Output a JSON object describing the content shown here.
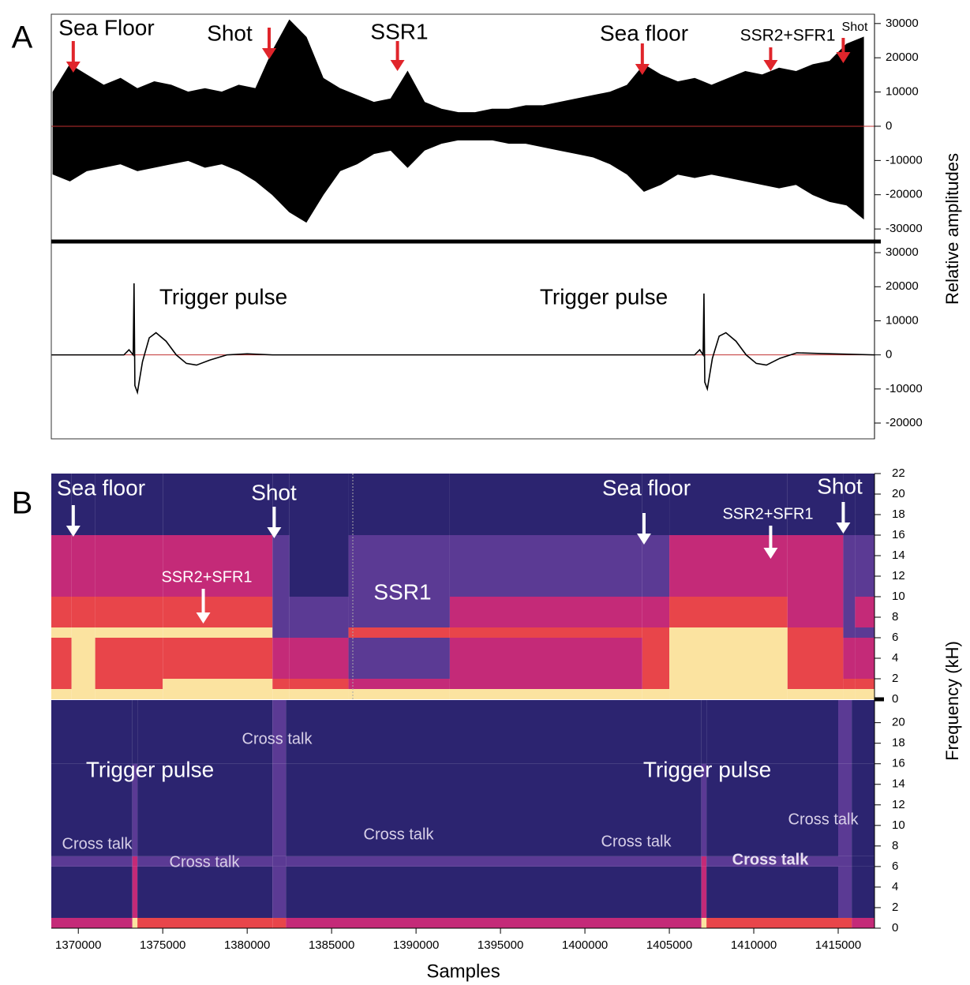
{
  "chart_data": [
    {
      "type": "area",
      "panel": "A",
      "ylabel": "Relative amplitudes",
      "xlim": [
        1368400,
        1417150
      ],
      "ylim": [
        -33200,
        31800
      ],
      "yticks": [
        30000,
        20000,
        10000,
        0,
        -10000,
        -20000,
        -30000
      ],
      "zero_line_color": "#c03030",
      "arrow_color": "#e0252b",
      "x": [
        1368500,
        1369500,
        1370500,
        1371500,
        1372500,
        1373500,
        1374500,
        1375500,
        1376500,
        1377500,
        1378500,
        1379500,
        1380500,
        1381500,
        1382500,
        1383500,
        1384500,
        1385500,
        1386500,
        1387500,
        1388500,
        1389500,
        1390500,
        1391500,
        1392500,
        1393500,
        1394500,
        1395500,
        1396500,
        1397500,
        1398500,
        1399500,
        1400500,
        1401500,
        1402500,
        1403500,
        1404500,
        1405500,
        1406500,
        1407500,
        1408500,
        1409500,
        1410500,
        1411500,
        1412500,
        1413500,
        1414500,
        1415500,
        1416500
      ],
      "series": [
        {
          "color": "#000000",
          "values": [
            10000,
            18000,
            15000,
            12000,
            14000,
            11000,
            13000,
            12000,
            10000,
            11000,
            10000,
            12000,
            11000,
            22000,
            31000,
            26000,
            14000,
            11000,
            9000,
            7000,
            8000,
            16000,
            7000,
            5000,
            4000,
            4000,
            5000,
            5000,
            6000,
            6000,
            7000,
            8000,
            9000,
            10000,
            12000,
            18000,
            15000,
            13000,
            14000,
            12000,
            14000,
            16000,
            15000,
            17000,
            16000,
            18000,
            19000,
            24000,
            26000
          ]
        },
        {
          "color": "#000000",
          "values": [
            -14000,
            -16000,
            -13000,
            -12000,
            -11000,
            -13000,
            -12000,
            -11000,
            -10000,
            -12000,
            -11000,
            -13000,
            -16000,
            -20000,
            -25000,
            -28000,
            -20000,
            -13000,
            -11000,
            -8000,
            -7000,
            -12000,
            -7000,
            -5000,
            -4000,
            -4000,
            -4000,
            -5000,
            -5000,
            -6000,
            -7000,
            -8000,
            -9000,
            -11000,
            -14000,
            -19000,
            -17000,
            -14000,
            -15000,
            -14000,
            -15000,
            -16000,
            -17000,
            -18000,
            -17000,
            -20000,
            -22000,
            -23000,
            -27000
          ]
        }
      ],
      "annotations": [
        {
          "text": "Sea Floor",
          "x": 1369700
        },
        {
          "text": "Shot",
          "x": 1381300
        },
        {
          "text": "SSR1",
          "x": 1388900
        },
        {
          "text": "Sea floor",
          "x": 1403400
        },
        {
          "text": "SSR2+SFR1",
          "x": 1411000
        },
        {
          "text": "Shot",
          "x": 1415300
        }
      ]
    },
    {
      "type": "line",
      "xlim": [
        1368400,
        1417150
      ],
      "ylim": [
        -24400,
        32800
      ],
      "yticks": [
        30000,
        20000,
        10000,
        0,
        -10000,
        -20000
      ],
      "zero_line_color": "#c03030",
      "color": "#000000",
      "x": [
        1368400,
        1372700,
        1373000,
        1373250,
        1373300,
        1373350,
        1373500,
        1373800,
        1374200,
        1374600,
        1375200,
        1375800,
        1376400,
        1377000,
        1377800,
        1378800,
        1380000,
        1381500,
        1406500,
        1406800,
        1407000,
        1407050,
        1407100,
        1407250,
        1407550,
        1407950,
        1408350,
        1408950,
        1409550,
        1410150,
        1410750,
        1411550,
        1412550,
        1414000,
        1417150
      ],
      "values": [
        0,
        0,
        1500,
        0,
        21000,
        -9000,
        -11000,
        -2000,
        5000,
        6500,
        4000,
        0,
        -2500,
        -3000,
        -1500,
        0,
        300,
        0,
        0,
        1500,
        0,
        18000,
        -8000,
        -10000,
        -1000,
        5500,
        6500,
        4000,
        0,
        -2500,
        -3000,
        -1000,
        600,
        400,
        0
      ],
      "annotations": [
        {
          "text": "Trigger pulse"
        },
        {
          "text": "Trigger pulse"
        }
      ]
    },
    {
      "type": "heatmap",
      "panel": "B",
      "ylabel": "Frequency (kH)",
      "xlim": [
        1368400,
        1417150
      ],
      "ylim": [
        0,
        22
      ],
      "yticks": [
        0,
        2,
        4,
        6,
        8,
        10,
        12,
        14,
        16,
        18,
        20,
        22
      ],
      "palette": [
        "#2c2470",
        "#5b3a94",
        "#c42a78",
        "#e8454a",
        "#fbe3a0"
      ],
      "arrow_color": "#ffffff",
      "x_edges": [
        1368400,
        1369600,
        1371000,
        1375000,
        1381500,
        1382500,
        1386000,
        1392000,
        1403400,
        1405000,
        1412000,
        1415300,
        1416000,
        1417150
      ],
      "y_edges": [
        0,
        1,
        2,
        6,
        7,
        10,
        16,
        22
      ],
      "levels": [
        [
          4,
          4,
          4,
          4,
          4,
          4,
          4,
          4,
          4,
          4,
          4,
          4,
          4
        ],
        [
          3,
          4,
          3,
          4,
          3,
          3,
          2,
          2,
          3,
          4,
          3,
          3,
          3
        ],
        [
          3,
          4,
          3,
          3,
          2,
          2,
          1,
          2,
          3,
          4,
          3,
          2,
          2
        ],
        [
          4,
          4,
          4,
          4,
          1,
          1,
          3,
          3,
          3,
          4,
          3,
          1,
          1
        ],
        [
          3,
          3,
          3,
          3,
          1,
          1,
          1,
          2,
          2,
          3,
          2,
          1,
          2
        ],
        [
          2,
          2,
          2,
          2,
          1,
          0,
          1,
          1,
          1,
          2,
          2,
          1,
          1
        ],
        [
          0,
          0,
          0,
          0,
          0,
          0,
          0,
          0,
          0,
          0,
          0,
          0,
          0
        ]
      ],
      "annotations": [
        {
          "text": "Sea floor",
          "x": 1369700
        },
        {
          "text": "Shot",
          "x": 1381600
        },
        {
          "text": "Sea floor",
          "x": 1403500
        },
        {
          "text": "Shot",
          "x": 1415300
        },
        {
          "text": "SSR2+SFR1",
          "x": 1377400
        },
        {
          "text": "SSR2+SFR1",
          "x": 1411000
        },
        {
          "text": "SSR1"
        }
      ]
    },
    {
      "type": "heatmap",
      "xlabel": "Samples",
      "xlim": [
        1368400,
        1417150
      ],
      "ylim": [
        0,
        22.2
      ],
      "xticks": [
        1370000,
        1375000,
        1380000,
        1385000,
        1390000,
        1395000,
        1400000,
        1405000,
        1410000,
        1415000
      ],
      "yticks": [
        0,
        2,
        4,
        6,
        8,
        10,
        12,
        14,
        16,
        18,
        20
      ],
      "palette": [
        "#2c2470",
        "#5b3a94",
        "#c42a78",
        "#e8454a",
        "#fbe3a0"
      ],
      "x_edges": [
        1368400,
        1373200,
        1373500,
        1381500,
        1382300,
        1406900,
        1407200,
        1415000,
        1415800,
        1417150
      ],
      "y_edges": [
        0,
        1,
        6,
        7,
        16,
        22.2
      ],
      "levels": [
        [
          2,
          4,
          3,
          3,
          2,
          4,
          3,
          3,
          2
        ],
        [
          0,
          2,
          0,
          1,
          0,
          2,
          0,
          1,
          0
        ],
        [
          1,
          2,
          1,
          1,
          1,
          2,
          1,
          1,
          0
        ],
        [
          0,
          1,
          0,
          1,
          0,
          1,
          0,
          1,
          0
        ],
        [
          0,
          0,
          0,
          1,
          0,
          0,
          0,
          1,
          0
        ]
      ],
      "annotations": [
        {
          "text": "Trigger pulse"
        },
        {
          "text": "Cross talk"
        },
        {
          "text": "Trigger pulse"
        },
        {
          "text": "Cross talk"
        },
        {
          "text": "Cross talk"
        },
        {
          "text": "Cross talk"
        },
        {
          "text": "Cross talk"
        },
        {
          "text": "Cross talk"
        },
        {
          "text": "Cross talk"
        }
      ]
    }
  ]
}
